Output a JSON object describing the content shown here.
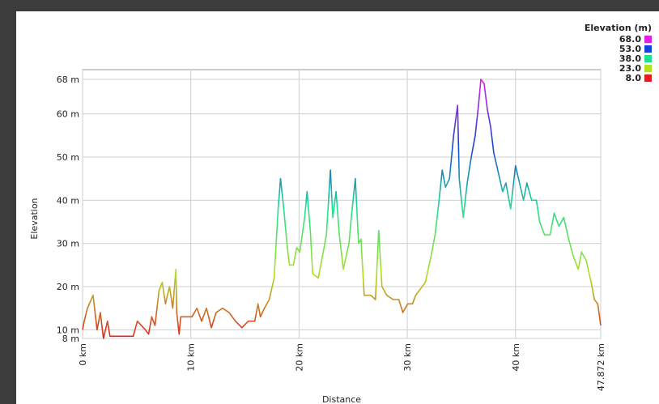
{
  "chart_data": {
    "type": "line",
    "xlabel": "Distance",
    "ylabel": "Elevation",
    "legend_title": "Elevation (m)",
    "color_scale": [
      {
        "value": 68,
        "label": "68.0",
        "color": "#e020e0"
      },
      {
        "value": 53,
        "label": "53.0",
        "color": "#1840e0"
      },
      {
        "value": 38,
        "label": "38.0",
        "color": "#20e090"
      },
      {
        "value": 23,
        "label": "23.0",
        "color": "#b0e020"
      },
      {
        "value": 8,
        "label": "8.0",
        "color": "#e02020"
      }
    ],
    "xlim": [
      0,
      47.872
    ],
    "ylim": [
      8,
      68
    ],
    "xticks": [
      {
        "value": 0,
        "label": "0 km"
      },
      {
        "value": 10,
        "label": "10 km"
      },
      {
        "value": 20,
        "label": "20 km"
      },
      {
        "value": 30,
        "label": "30 km"
      },
      {
        "value": 40,
        "label": "40 km"
      },
      {
        "value": 47.872,
        "label": "47.872 km"
      }
    ],
    "yticks": [
      {
        "value": 8,
        "label": "8 m"
      },
      {
        "value": 10,
        "label": "10 m"
      },
      {
        "value": 20,
        "label": "20 m"
      },
      {
        "value": 30,
        "label": "30 m"
      },
      {
        "value": 40,
        "label": "40 m"
      },
      {
        "value": 50,
        "label": "50 m"
      },
      {
        "value": 60,
        "label": "60 m"
      },
      {
        "value": 68,
        "label": "68 m"
      }
    ],
    "grid": true,
    "x": [
      0,
      0.15,
      0.45,
      0.97,
      1.34,
      1.64,
      1.93,
      2.3,
      2.53,
      3.57,
      4.68,
      5.06,
      5.8,
      6.1,
      6.39,
      6.69,
      7.06,
      7.36,
      7.66,
      8.03,
      8.33,
      8.62,
      8.7,
      8.92,
      9.07,
      10.11,
      10.56,
      11.0,
      11.45,
      11.9,
      12.34,
      12.94,
      13.53,
      14.13,
      14.72,
      15.32,
      15.91,
      16.21,
      16.43,
      16.8,
      17.25,
      17.7,
      18.07,
      18.29,
      18.59,
      18.88,
      19.11,
      19.48,
      19.78,
      20.07,
      20.52,
      20.74,
      21.04,
      21.26,
      21.78,
      22.16,
      22.53,
      22.9,
      23.12,
      23.42,
      23.72,
      24.09,
      24.61,
      24.83,
      25.2,
      25.5,
      25.72,
      26.02,
      26.62,
      27.06,
      27.36,
      27.66,
      28.1,
      28.7,
      29.22,
      29.59,
      30.04,
      30.48,
      30.78,
      31.67,
      32.19,
      32.57,
      32.94,
      33.23,
      33.53,
      33.9,
      34.28,
      34.65,
      34.8,
      35.17,
      35.54,
      35.91,
      36.28,
      36.58,
      36.8,
      37.1,
      37.4,
      37.7,
      37.99,
      38.36,
      38.81,
      39.11,
      39.55,
      40.0,
      40.37,
      40.74,
      41.05,
      41.49,
      41.93,
      42.23,
      42.68,
      43.2,
      43.57,
      44.01,
      44.46,
      44.91,
      45.35,
      45.8,
      46.1,
      46.54,
      46.99,
      47.29,
      47.6,
      47.872
    ],
    "series": [
      {
        "name": "Elevation",
        "values": [
          10,
          12,
          15,
          18,
          10,
          14,
          8,
          12,
          8.5,
          8.5,
          8.5,
          12,
          10,
          9,
          13,
          11,
          19,
          21,
          16,
          20,
          15,
          24,
          14,
          9,
          13,
          13,
          15,
          12,
          15,
          10.5,
          14,
          15,
          14,
          12,
          10.5,
          12,
          12,
          16,
          13,
          15,
          17,
          22,
          38,
          45,
          38,
          30,
          25,
          25,
          29,
          28,
          36,
          42,
          33,
          23,
          22,
          27,
          32,
          47,
          36,
          42,
          32,
          24,
          30,
          36,
          45,
          30,
          31,
          18,
          18,
          17,
          33,
          20,
          18,
          17,
          17,
          14,
          16,
          16,
          18,
          21,
          27,
          32,
          40,
          47,
          43,
          45,
          55,
          62,
          45,
          36,
          44,
          50,
          55,
          62,
          68,
          67,
          61,
          57,
          51,
          47,
          42,
          44,
          38,
          48,
          44,
          40,
          44,
          40,
          40,
          35,
          32,
          32,
          37,
          34,
          36,
          31,
          27,
          24,
          28,
          26,
          21,
          17,
          16,
          11
        ]
      }
    ]
  }
}
